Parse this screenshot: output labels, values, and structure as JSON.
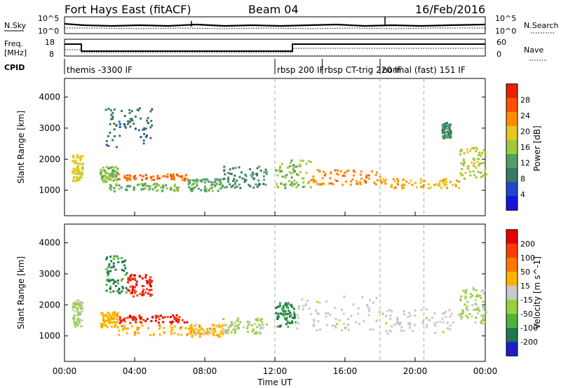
{
  "header": {
    "title": "Fort Hays East (fitACF)",
    "beam": "Beam 04",
    "date": "16/Feb/2016"
  },
  "noise_panel": {
    "left_label": "N.Sky",
    "right_label": "N.Search",
    "ticks": [
      "10^5",
      "10^0"
    ]
  },
  "freq_panel": {
    "left_label_line1": "Freq.",
    "left_label_line2": "[MHz]",
    "left_ticks": [
      "18",
      "8"
    ],
    "right_label": "Nave",
    "right_ticks": [
      "60",
      "0"
    ]
  },
  "cpid": {
    "label": "CPID",
    "segments": [
      {
        "start_hour": 0.0,
        "text": "themis -3300 IF"
      },
      {
        "start_hour": 12.0,
        "text": "rbsp 200 IF"
      },
      {
        "start_hour": 14.7,
        "text": "rbsp CT-trig 220 IF"
      },
      {
        "start_hour": 18.0,
        "text": "normal (fast) 151 IF"
      }
    ]
  },
  "xaxis": {
    "title": "Time UT",
    "ticks": [
      "00:00",
      "04:00",
      "08:00",
      "12:00",
      "16:00",
      "20:00",
      "00:00"
    ]
  },
  "colors": {
    "power_scale": [
      "#1414dc",
      "#1e46c8",
      "#3c7864",
      "#50a064",
      "#a0c83c",
      "#e6c81e",
      "#ff8c00",
      "#ff5000",
      "#f01e00"
    ],
    "velocity_scale": [
      "#1e1ec8",
      "#1e7850",
      "#50b43c",
      "#96d23c",
      "#c8c8c8",
      "#ffb400",
      "#ff7800",
      "#ff3c00",
      "#e60000"
    ]
  },
  "chart_data": [
    {
      "type": "heatmap",
      "panel": "power",
      "xlabel": "Time UT",
      "ylabel": "Slant Range [km]",
      "xlim": [
        0,
        24
      ],
      "ylim": [
        180,
        4600
      ],
      "yticks": [
        1000,
        2000,
        3000,
        4000
      ],
      "colorbar": {
        "label": "Power [dB]",
        "ticks": [
          "28",
          "24",
          "20",
          "16",
          "12",
          "8",
          "4"
        ],
        "range": [
          0,
          30
        ]
      },
      "vertical_markers_hours": [
        12.0,
        18.0,
        20.5
      ],
      "bands": [
        {
          "x": [
            0.4,
            1.0
          ],
          "y": [
            1300,
            2200
          ],
          "value": 18
        },
        {
          "x": [
            2.0,
            3.0
          ],
          "y": [
            1300,
            1800
          ],
          "value": 14
        },
        {
          "x": [
            3.0,
            7.0
          ],
          "y": [
            1350,
            1550
          ],
          "value": 24
        },
        {
          "x": [
            2.5,
            6.5
          ],
          "y": [
            1000,
            1250
          ],
          "value": 13
        },
        {
          "x": [
            7.0,
            9.0
          ],
          "y": [
            1000,
            1400
          ],
          "value": 12
        },
        {
          "x": [
            9.0,
            11.5
          ],
          "y": [
            1100,
            1800
          ],
          "value": 10
        },
        {
          "x": [
            12.0,
            14.0
          ],
          "y": [
            1100,
            2000
          ],
          "value": 14
        },
        {
          "x": [
            14.0,
            18.0
          ],
          "y": [
            1200,
            1700
          ],
          "value": 22
        },
        {
          "x": [
            18.0,
            22.5
          ],
          "y": [
            1100,
            1400
          ],
          "value": 20
        },
        {
          "x": [
            22.5,
            24.0
          ],
          "y": [
            1400,
            2400
          ],
          "value": 16
        },
        {
          "x": [
            2.3,
            5.0
          ],
          "y": [
            2400,
            3700
          ],
          "value": 8
        },
        {
          "x": [
            21.5,
            22.0
          ],
          "y": [
            2700,
            3200
          ],
          "value": 10
        }
      ]
    },
    {
      "type": "heatmap",
      "panel": "velocity",
      "xlabel": "Time UT",
      "ylabel": "Slant Range [km]",
      "xlim": [
        0,
        24
      ],
      "ylim": [
        180,
        4600
      ],
      "yticks": [
        1000,
        2000,
        3000,
        4000
      ],
      "colorbar": {
        "label": "Velocity [m s^-1]",
        "ticks": [
          "200",
          "100",
          "50",
          "15",
          "-15",
          "-50",
          "-100",
          "-200"
        ],
        "range": [
          -250,
          250
        ]
      },
      "vertical_markers_hours": [
        12.0,
        18.0,
        20.5
      ],
      "bands": [
        {
          "x": [
            0.4,
            1.0
          ],
          "y": [
            1300,
            2200
          ],
          "value": -40
        },
        {
          "x": [
            2.0,
            3.0
          ],
          "y": [
            1300,
            1800
          ],
          "value": 60
        },
        {
          "x": [
            3.0,
            7.0
          ],
          "y": [
            1450,
            1700
          ],
          "value": 200
        },
        {
          "x": [
            3.0,
            8.5
          ],
          "y": [
            1050,
            1400
          ],
          "value": 60
        },
        {
          "x": [
            7.0,
            9.0
          ],
          "y": [
            1000,
            1400
          ],
          "value": 40
        },
        {
          "x": [
            9.0,
            11.5
          ],
          "y": [
            1100,
            1600
          ],
          "value": -40
        },
        {
          "x": [
            12.0,
            13.2
          ],
          "y": [
            1300,
            2100
          ],
          "value": -150
        },
        {
          "x": [
            13.2,
            18.0
          ],
          "y": [
            1200,
            2300
          ],
          "value": 0
        },
        {
          "x": [
            18.0,
            22.5
          ],
          "y": [
            1100,
            1900
          ],
          "value": 0
        },
        {
          "x": [
            22.5,
            24.0
          ],
          "y": [
            1400,
            2600
          ],
          "value": -40
        },
        {
          "x": [
            2.3,
            3.5
          ],
          "y": [
            2400,
            3600
          ],
          "value": -150
        },
        {
          "x": [
            3.5,
            5.0
          ],
          "y": [
            2300,
            3000
          ],
          "value": 200
        }
      ]
    }
  ]
}
